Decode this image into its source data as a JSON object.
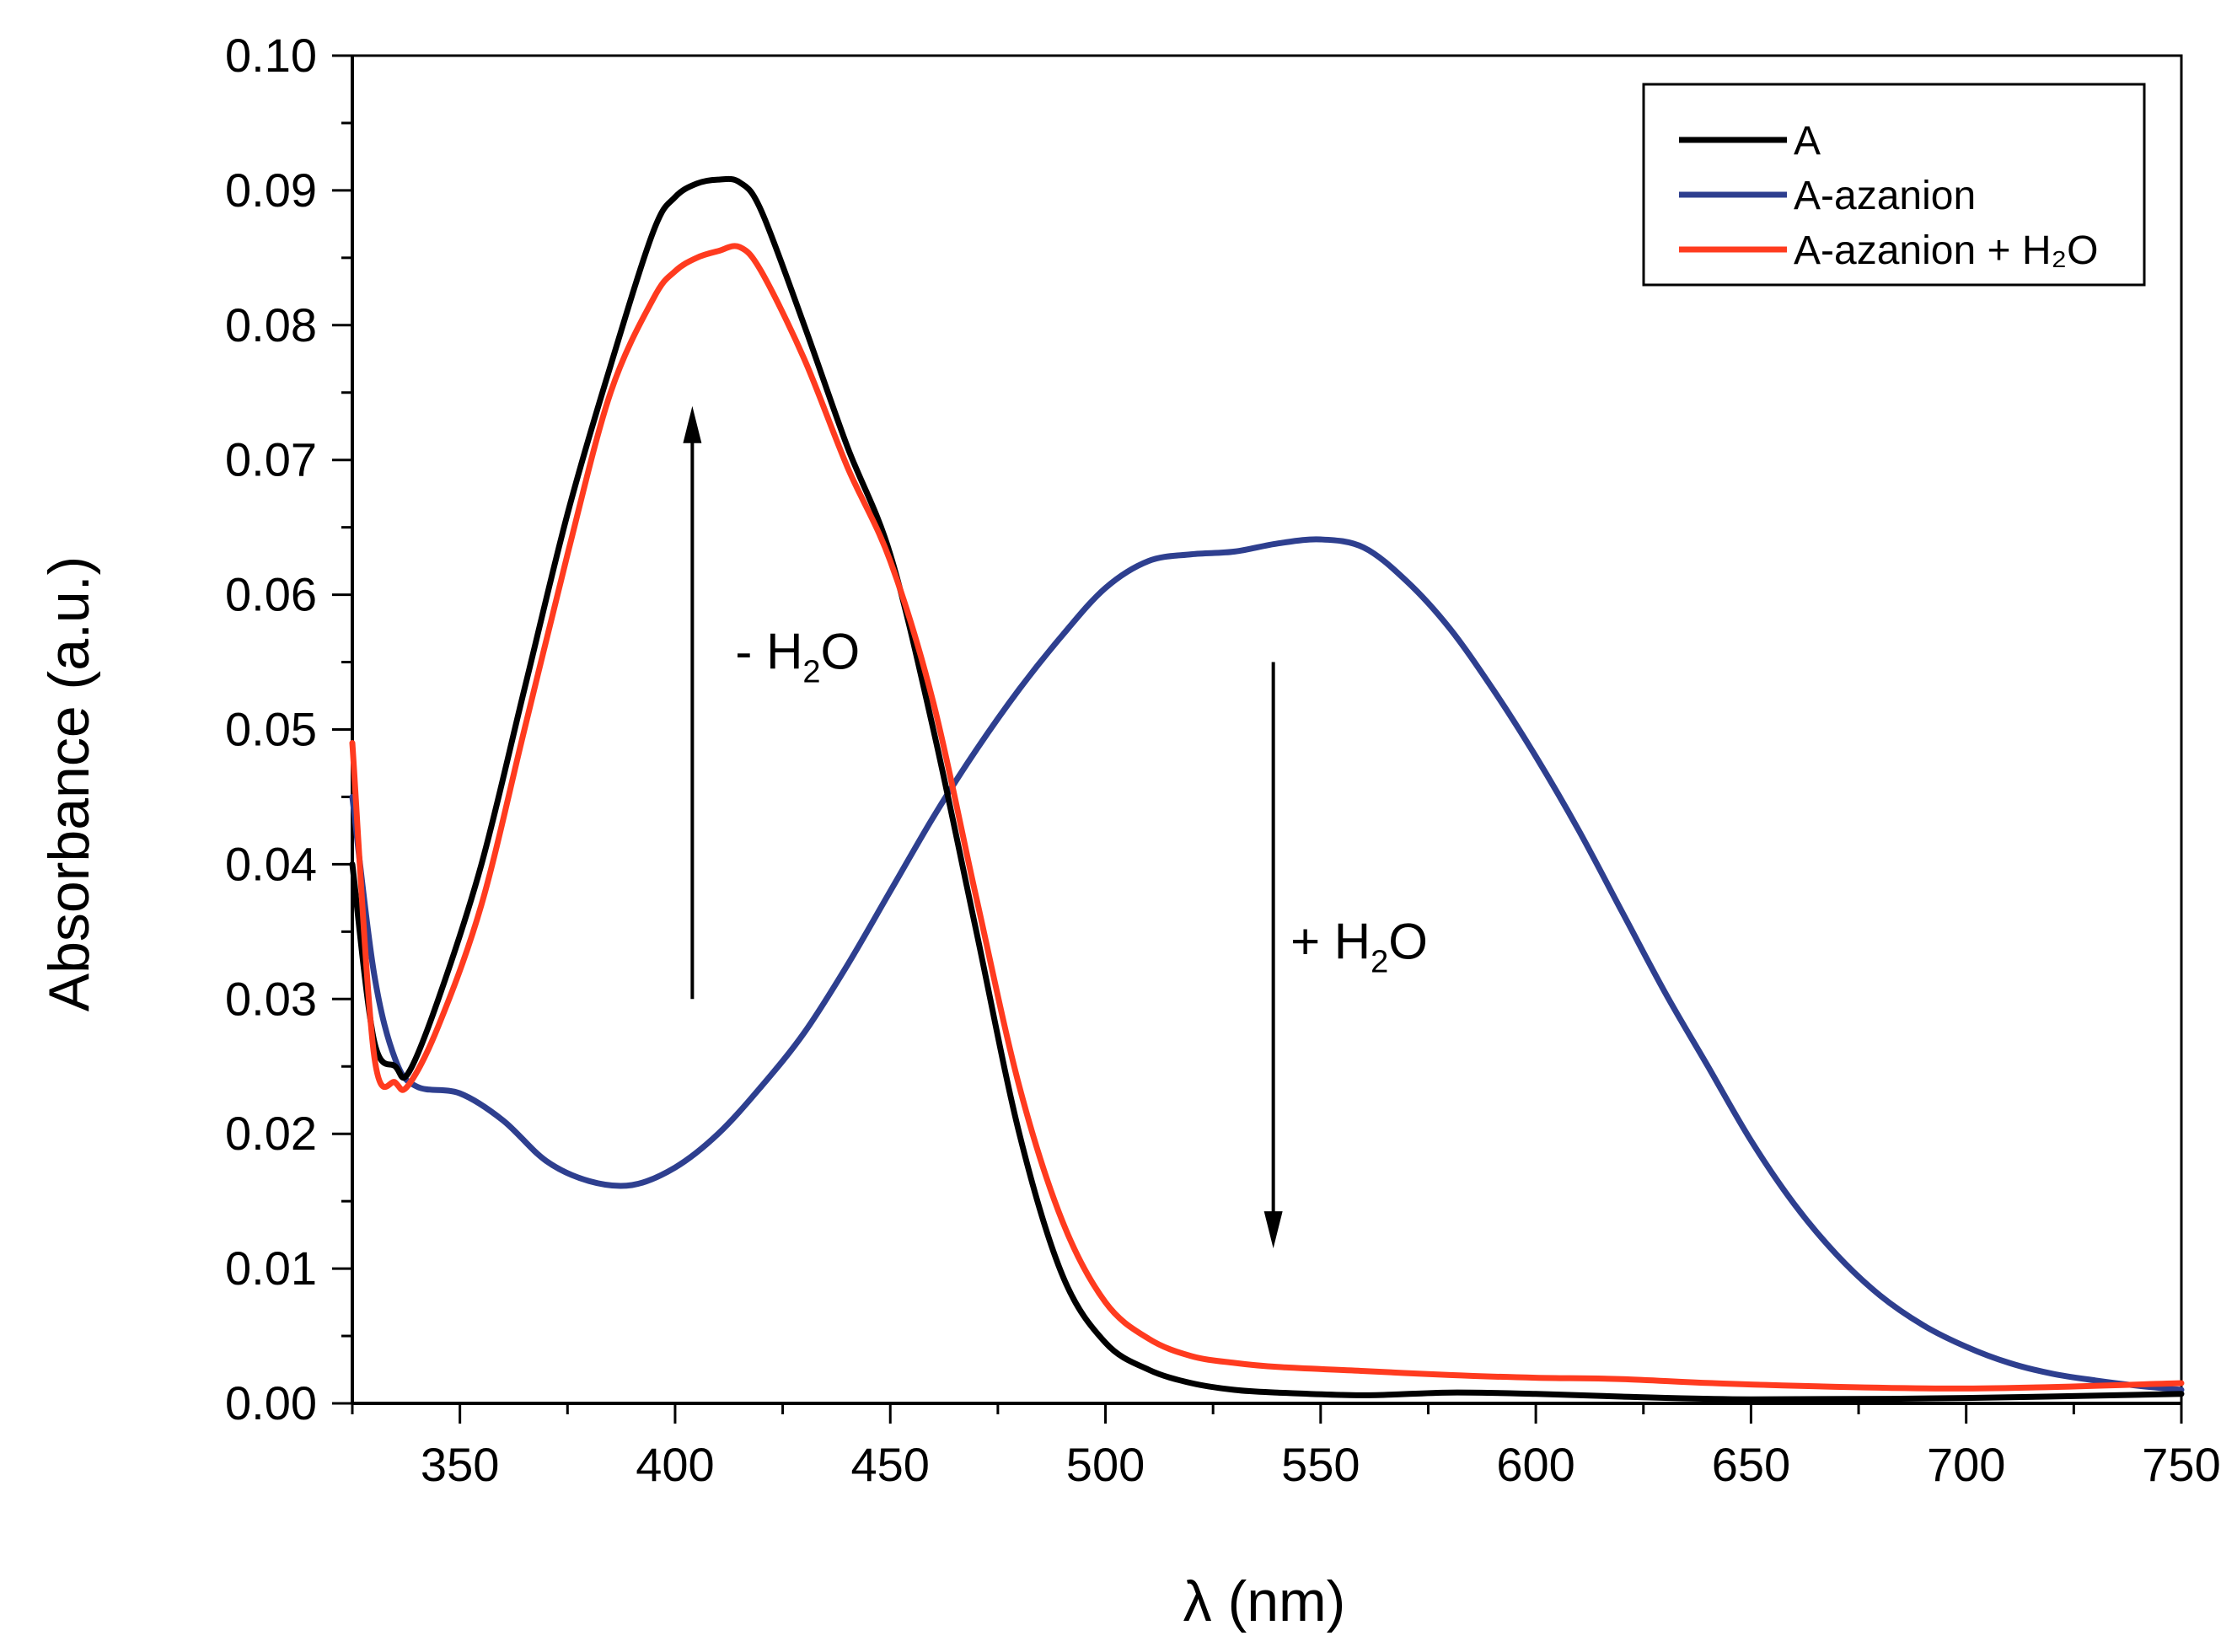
{
  "chart_data": {
    "type": "line",
    "title": "",
    "xlabel": "λ (nm)",
    "ylabel": "Absorbance (a.u.)",
    "xlim": [
      325,
      750
    ],
    "ylim": [
      0.0,
      0.1
    ],
    "x_ticks": [
      "350",
      "400",
      "450",
      "500",
      "550",
      "600",
      "650",
      "700",
      "750"
    ],
    "y_ticks": [
      "0.00",
      "0.01",
      "0.02",
      "0.03",
      "0.04",
      "0.05",
      "0.06",
      "0.07",
      "0.08",
      "0.09",
      "0.10"
    ],
    "grid": false,
    "legend_position": "top-right",
    "series": [
      {
        "name": "A",
        "color": "#000000",
        "x": [
          325,
          330,
          335,
          338,
          345,
          355,
          365,
          375,
          385,
          395,
          400,
          405,
          410,
          415,
          420,
          430,
          440,
          450,
          460,
          470,
          480,
          490,
          500,
          510,
          520,
          530,
          540,
          560,
          580,
          600,
          620,
          650,
          700,
          750
        ],
        "y": [
          0.04,
          0.027,
          0.025,
          0.0245,
          0.03,
          0.04,
          0.053,
          0.066,
          0.077,
          0.087,
          0.0895,
          0.0905,
          0.0908,
          0.0906,
          0.0885,
          0.08,
          0.071,
          0.063,
          0.05,
          0.035,
          0.02,
          0.0095,
          0.0045,
          0.0025,
          0.0015,
          0.001,
          0.0008,
          0.0006,
          0.0008,
          0.0007,
          0.0005,
          0.0003,
          0.0004,
          0.0007
        ]
      },
      {
        "name": "A-azanion",
        "color": "#2e3f8f",
        "x": [
          325,
          330,
          335,
          340,
          350,
          360,
          370,
          380,
          390,
          400,
          410,
          420,
          430,
          440,
          450,
          460,
          470,
          480,
          490,
          500,
          510,
          520,
          530,
          540,
          550,
          560,
          570,
          580,
          590,
          600,
          610,
          620,
          630,
          640,
          650,
          660,
          670,
          680,
          690,
          700,
          710,
          720,
          730,
          740,
          750
        ],
        "y": [
          0.045,
          0.032,
          0.0255,
          0.0235,
          0.023,
          0.021,
          0.018,
          0.0165,
          0.0162,
          0.0175,
          0.02,
          0.0235,
          0.0275,
          0.0325,
          0.038,
          0.0435,
          0.0485,
          0.053,
          0.057,
          0.0605,
          0.0625,
          0.063,
          0.0632,
          0.0638,
          0.0641,
          0.0635,
          0.061,
          0.0575,
          0.053,
          0.048,
          0.0425,
          0.0365,
          0.0305,
          0.025,
          0.0195,
          0.0148,
          0.011,
          0.008,
          0.0058,
          0.0042,
          0.003,
          0.0022,
          0.0017,
          0.0013,
          0.001
        ]
      },
      {
        "name": "A-azanion + H₂O",
        "color": "#ff3b1f",
        "x": [
          325,
          330,
          335,
          338,
          345,
          355,
          365,
          375,
          385,
          395,
          400,
          405,
          410,
          415,
          420,
          430,
          440,
          450,
          460,
          470,
          480,
          490,
          500,
          510,
          520,
          530,
          540,
          560,
          580,
          600,
          620,
          650,
          700,
          750
        ],
        "y": [
          0.049,
          0.026,
          0.0238,
          0.0236,
          0.028,
          0.037,
          0.05,
          0.063,
          0.075,
          0.082,
          0.084,
          0.085,
          0.0855,
          0.0858,
          0.084,
          0.0775,
          0.0695,
          0.0625,
          0.052,
          0.0375,
          0.0235,
          0.0135,
          0.0075,
          0.0048,
          0.0035,
          0.003,
          0.0027,
          0.0024,
          0.0021,
          0.0019,
          0.0018,
          0.0014,
          0.0011,
          0.0015
        ]
      }
    ],
    "annotations": [
      {
        "text": "- H",
        "subscript": "2",
        "suffix": "O",
        "direction": "up",
        "x": 404,
        "y_from": 0.03,
        "y_to": 0.074,
        "label_x": 414,
        "label_y": 0.0545
      },
      {
        "text": "+ H",
        "subscript": "2",
        "suffix": "O",
        "direction": "down",
        "x": 539,
        "y_from": 0.055,
        "y_to": 0.0115,
        "label_x": 543,
        "label_y": 0.033
      }
    ]
  }
}
